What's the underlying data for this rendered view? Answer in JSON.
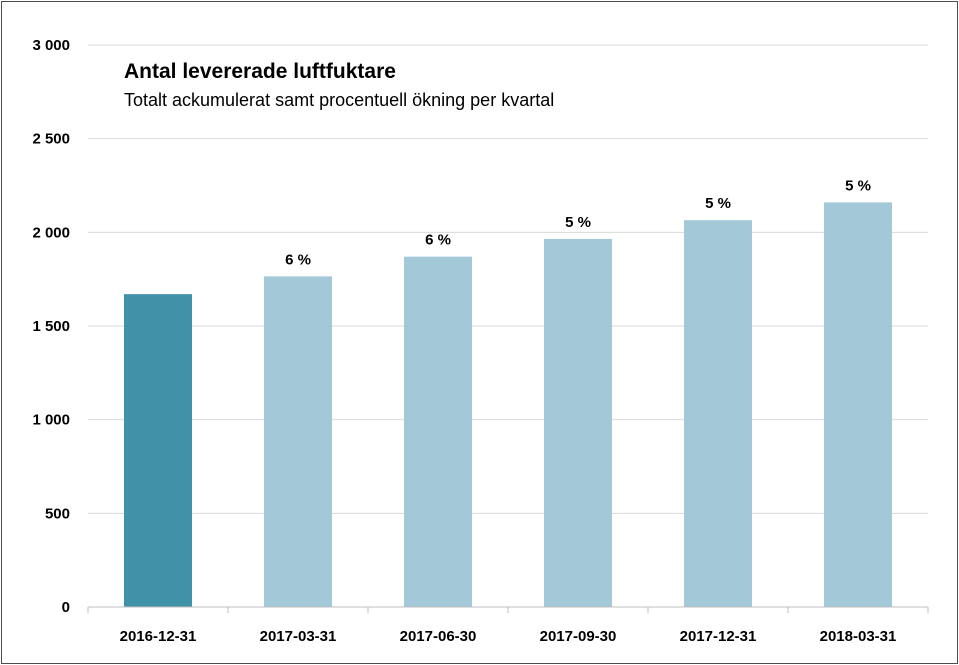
{
  "chart_data": {
    "type": "bar",
    "title": "Antal levererade luftfuktare",
    "subtitle": "Totalt ackumulerat samt procentuell ökning per kvartal",
    "categories": [
      "2016-12-31",
      "2017-03-31",
      "2017-06-30",
      "2017-09-30",
      "2017-12-31",
      "2018-03-31"
    ],
    "values": [
      1670,
      1765,
      1870,
      1965,
      2065,
      2160
    ],
    "data_labels": [
      "",
      "6 %",
      "6 %",
      "5 %",
      "5 %",
      "5 %"
    ],
    "bar_colors": [
      "#3f92a8",
      "#a3c9d9",
      "#a3c9d9",
      "#a3c9d9",
      "#a3c9d9",
      "#a3c9d9"
    ],
    "ylim": [
      0,
      3000
    ],
    "y_ticks": [
      0,
      500,
      1000,
      1500,
      2000,
      2500,
      3000
    ],
    "y_tick_labels": [
      "0",
      "500",
      "1 000",
      "1 500",
      "2 000",
      "2 500",
      "3 000"
    ],
    "grid": true,
    "legend": "none"
  }
}
